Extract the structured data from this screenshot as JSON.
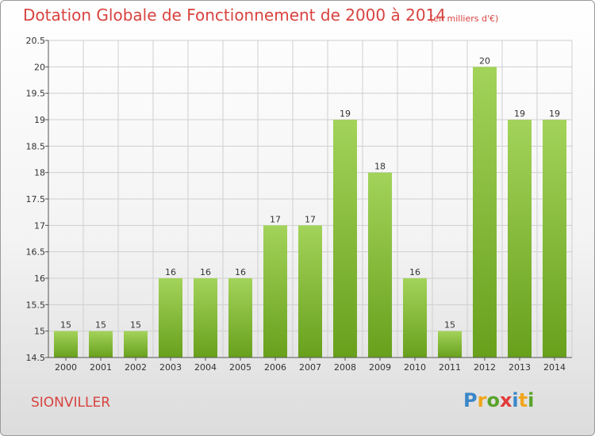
{
  "header": {
    "title": "Dotation Globale de Fonctionnement de 2000 à 2014",
    "unit": "(en milliers d'€)"
  },
  "footer": {
    "commune": "SIONVILLER",
    "logo_letters": [
      "P",
      "r",
      "o",
      "x",
      "i",
      "t",
      "i"
    ],
    "logo_colors": [
      "#3a86c8",
      "#f2a51a",
      "#5aa329",
      "#e23a3a",
      "#3a86c8",
      "#f2a51a",
      "#5aa329"
    ]
  },
  "colors": {
    "bar_light": "#a3d35a",
    "bar_dark": "#68a01c",
    "grid": "#cfcfcf",
    "axis": "#555555"
  },
  "chart_data": {
    "type": "bar",
    "title": "Dotation Globale de Fonctionnement de 2000 à 2014",
    "subtitle": "(en milliers d'€)",
    "xlabel": "",
    "ylabel": "",
    "categories": [
      "2000",
      "2001",
      "2002",
      "2003",
      "2004",
      "2005",
      "2006",
      "2007",
      "2008",
      "2009",
      "2010",
      "2011",
      "2012",
      "2013",
      "2014"
    ],
    "values": [
      15,
      15,
      15,
      16,
      16,
      16,
      17,
      17,
      19,
      18,
      16,
      15,
      20,
      19,
      19
    ],
    "value_labels": [
      "15",
      "15",
      "15",
      "16",
      "16",
      "16",
      "17",
      "17",
      "19",
      "18",
      "16",
      "15",
      "20",
      "19",
      "19"
    ],
    "ylim": [
      14.5,
      20.5
    ],
    "yticks": [
      14.5,
      15,
      15.5,
      16,
      16.5,
      17,
      17.5,
      18,
      18.5,
      19,
      19.5,
      20,
      20.5
    ],
    "ytick_labels": [
      "14.5",
      "15",
      "15.5",
      "16",
      "16.5",
      "17",
      "17.5",
      "18",
      "18.5",
      "19",
      "19.5",
      "20",
      "20.5"
    ],
    "grid": true,
    "legend": "none"
  }
}
